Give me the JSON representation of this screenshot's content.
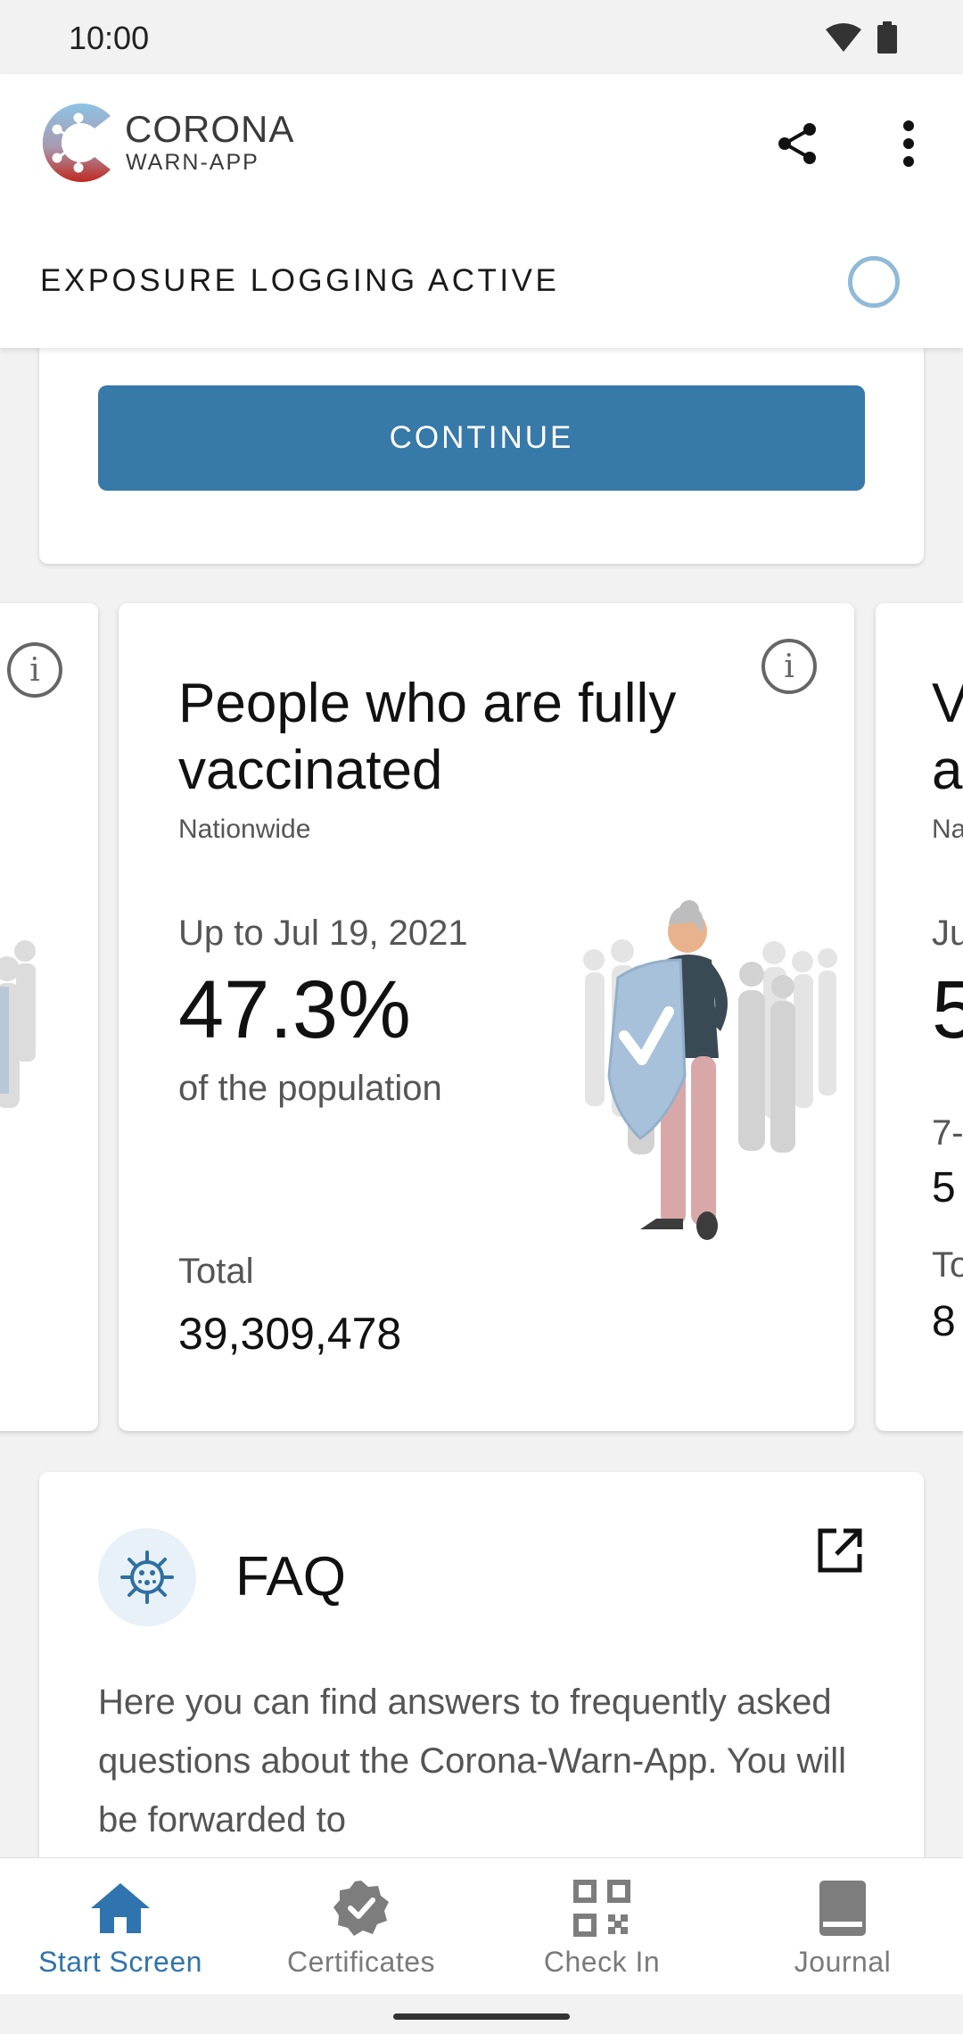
{
  "status_bar": {
    "time": "10:00"
  },
  "header": {
    "logo_line1": "CORONA",
    "logo_line2": "WARN-APP",
    "exposure_status": "EXPOSURE LOGGING ACTIVE"
  },
  "continue_card": {
    "button_label": "CONTINUE"
  },
  "stats": {
    "main": {
      "title": "People who are fully vaccinated",
      "region": "Nationwide",
      "date_label": "Up to Jul 19, 2021",
      "value": "47.3%",
      "value_sub": "of the population",
      "total_label": "Total",
      "total_value": "39,309,478"
    },
    "right_peek": {
      "title_line1": "V",
      "title_line2": "a",
      "region": "Na",
      "date": "Ju",
      "value": "5",
      "sub1": "7-",
      "sub1_val": "5",
      "sub2": "To",
      "sub2_val": "8"
    }
  },
  "faq": {
    "title": "FAQ",
    "body": "Here you can find answers to frequently asked questions about the Corona-Warn-App. You will be forwarded to"
  },
  "bottom_nav": {
    "items": [
      {
        "label": "Start Screen",
        "icon": "home-icon",
        "active": true
      },
      {
        "label": "Certificates",
        "icon": "certificate-badge-icon",
        "active": false
      },
      {
        "label": "Check In",
        "icon": "qr-code-icon",
        "active": false
      },
      {
        "label": "Journal",
        "icon": "journal-book-icon",
        "active": false
      }
    ]
  },
  "colors": {
    "primary": "#3779a9",
    "active_nav": "#2f74ae",
    "ring": "#8fbad8"
  }
}
